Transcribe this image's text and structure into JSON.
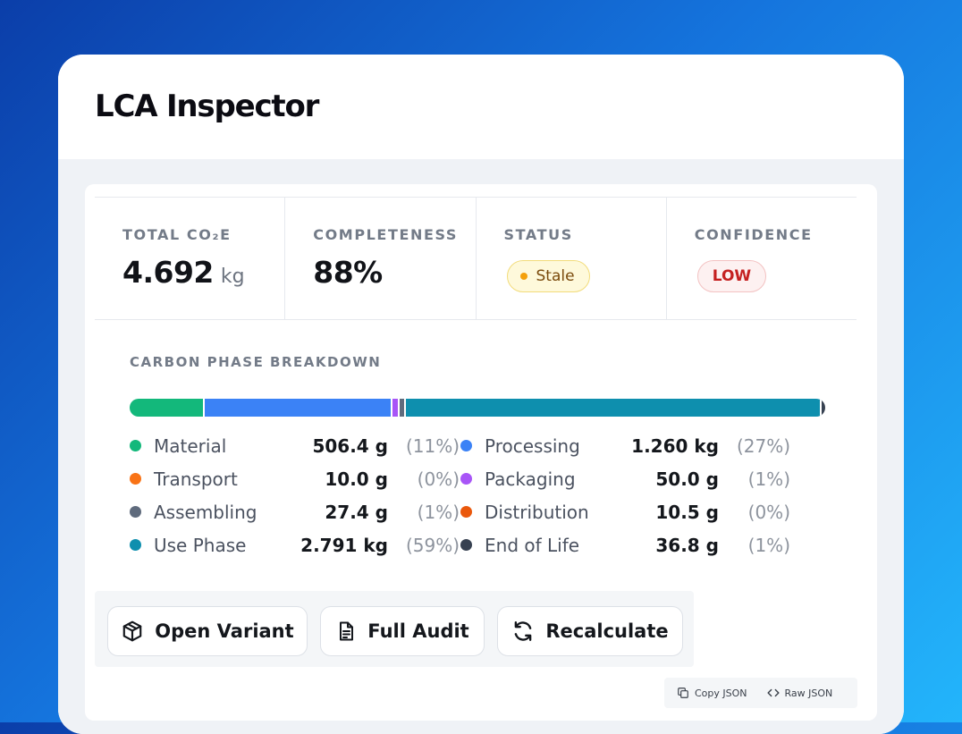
{
  "window": {
    "title": "LCA Inspector"
  },
  "stats": {
    "total": {
      "label": "TOTAL CO₂E",
      "value": "4.692",
      "unit": "kg"
    },
    "completeness": {
      "label": "COMPLETENESS",
      "value": "88%"
    },
    "status": {
      "label": "STATUS",
      "value": "Stale",
      "color": "#f4a00b"
    },
    "confidence": {
      "label": "CONFIDENCE",
      "value": "LOW",
      "color": "#c52121"
    }
  },
  "breakdown": {
    "title": "CARBON PHASE BREAKDOWN",
    "bar_values_kg": [
      0.5064,
      1.26,
      0.05,
      0.0274,
      2.791,
      0.0368
    ],
    "bar_colors": [
      "#13b87b",
      "#3b82f6",
      "#a855f7",
      "#5f6b7d",
      "#0e8fae",
      "#374151"
    ],
    "phases": [
      {
        "name": "Material",
        "value": "506.4 g",
        "pct": "(11%)",
        "color": "#13b87b"
      },
      {
        "name": "Processing",
        "value": "1.260 kg",
        "pct": "(27%)",
        "color": "#3b82f6"
      },
      {
        "name": "Transport",
        "value": "10.0 g",
        "pct": "(0%)",
        "color": "#f97316"
      },
      {
        "name": "Packaging",
        "value": "50.0 g",
        "pct": "(1%)",
        "color": "#a855f7"
      },
      {
        "name": "Assembling",
        "value": "27.4 g",
        "pct": "(1%)",
        "color": "#5f6b7d"
      },
      {
        "name": "Distribution",
        "value": "10.5 g",
        "pct": "(0%)",
        "color": "#ea580c"
      },
      {
        "name": "Use Phase",
        "value": "2.791 kg",
        "pct": "(59%)",
        "color": "#0e8fae"
      },
      {
        "name": "End of Life",
        "value": "36.8 g",
        "pct": "(1%)",
        "color": "#374151"
      }
    ]
  },
  "actions": {
    "open_variant": {
      "label": "Open Variant",
      "icon": "box-icon"
    },
    "full_audit": {
      "label": "Full Audit",
      "icon": "document-icon"
    },
    "recalculate": {
      "label": "Recalculate",
      "icon": "refresh-icon"
    }
  },
  "json_tools": {
    "copy_label": "Copy JSON",
    "raw_label": "Raw JSON"
  }
}
